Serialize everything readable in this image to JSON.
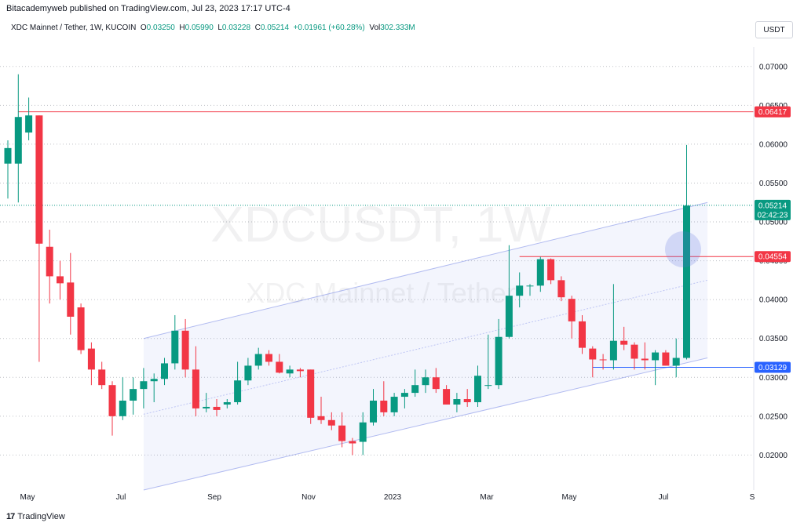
{
  "header": {
    "publisher": "Bitacademyweb published on TradingView.com, Jul 23, 2023 17:17 UTC-4"
  },
  "legend": {
    "symbol": "XDC Mainnet / Tether, 1W, KUCOIN",
    "open_label": "O",
    "open": "0.03250",
    "high_label": "H",
    "high": "0.05990",
    "low_label": "L",
    "low": "0.03228",
    "close_label": "C",
    "close": "0.05214",
    "change": "+0.01961 (+60.28%)",
    "vol_label": "Vol",
    "vol": "302.333M"
  },
  "currency_button": "USDT",
  "footer": {
    "brand": "TradingView",
    "logo": "17"
  },
  "colors": {
    "up": "#089981",
    "down": "#f23645",
    "channel": "#5b6ee1",
    "blue_line": "#2962ff",
    "red_line": "#f23645"
  },
  "chart_data": {
    "type": "candlestick",
    "watermark": {
      "symbol": "XDCUSDT, 1W",
      "name": "XDC Mainnet / Tether"
    },
    "y_ticks": [
      "0.07000",
      "0.06500",
      "0.06000",
      "0.05500",
      "0.05000",
      "0.04500",
      "0.04000",
      "0.03500",
      "0.03000",
      "0.02500",
      "0.02000"
    ],
    "x_ticks": [
      "May",
      "Jul",
      "Sep",
      "Nov",
      "2023",
      "Mar",
      "May",
      "Jul",
      "S"
    ],
    "ylim": [
      0.0155,
      0.0725
    ],
    "price_labels": [
      {
        "value": "0.06417",
        "price": 0.06417,
        "color": "#f23645"
      },
      {
        "value": "0.05214",
        "price": 0.05214,
        "color": "#089981",
        "countdown": "02:42:23"
      },
      {
        "value": "0.04554",
        "price": 0.04554,
        "color": "#f23645"
      },
      {
        "value": "0.03129",
        "price": 0.03129,
        "color": "#2962ff"
      }
    ],
    "horizontal_lines": [
      {
        "price": 0.06417,
        "color": "#f23645",
        "from_index": 1
      },
      {
        "price": 0.04554,
        "color": "#f23645",
        "from_index": 49
      },
      {
        "price": 0.03129,
        "color": "#2962ff",
        "from_index": 56
      }
    ],
    "channel": {
      "start_index": 13,
      "end_index": 67,
      "lower_start": 0.0155,
      "lower_end": 0.0325,
      "upper_start": 0.035,
      "upper_end": 0.0525
    },
    "candles": [
      {
        "o": 0.0575,
        "h": 0.0605,
        "l": 0.053,
        "c": 0.0595
      },
      {
        "o": 0.0575,
        "h": 0.069,
        "l": 0.0525,
        "c": 0.0635
      },
      {
        "o": 0.0615,
        "h": 0.066,
        "l": 0.0605,
        "c": 0.0637
      },
      {
        "o": 0.0637,
        "h": 0.0637,
        "l": 0.032,
        "c": 0.0472
      },
      {
        "o": 0.0468,
        "h": 0.049,
        "l": 0.0395,
        "c": 0.043
      },
      {
        "o": 0.043,
        "h": 0.045,
        "l": 0.04,
        "c": 0.0421
      },
      {
        "o": 0.0422,
        "h": 0.046,
        "l": 0.0355,
        "c": 0.0378
      },
      {
        "o": 0.039,
        "h": 0.0395,
        "l": 0.033,
        "c": 0.0335
      },
      {
        "o": 0.0337,
        "h": 0.0345,
        "l": 0.029,
        "c": 0.031
      },
      {
        "o": 0.031,
        "h": 0.032,
        "l": 0.0285,
        "c": 0.029
      },
      {
        "o": 0.029,
        "h": 0.0295,
        "l": 0.0225,
        "c": 0.025
      },
      {
        "o": 0.025,
        "h": 0.03,
        "l": 0.0245,
        "c": 0.027
      },
      {
        "o": 0.027,
        "h": 0.03,
        "l": 0.0252,
        "c": 0.0285
      },
      {
        "o": 0.0285,
        "h": 0.0312,
        "l": 0.026,
        "c": 0.0295
      },
      {
        "o": 0.0295,
        "h": 0.0305,
        "l": 0.0268,
        "c": 0.0298
      },
      {
        "o": 0.0298,
        "h": 0.0325,
        "l": 0.029,
        "c": 0.0318
      },
      {
        "o": 0.0318,
        "h": 0.038,
        "l": 0.031,
        "c": 0.036
      },
      {
        "o": 0.036,
        "h": 0.0375,
        "l": 0.03,
        "c": 0.031
      },
      {
        "o": 0.031,
        "h": 0.034,
        "l": 0.025,
        "c": 0.026
      },
      {
        "o": 0.026,
        "h": 0.028,
        "l": 0.0255,
        "c": 0.0262
      },
      {
        "o": 0.0262,
        "h": 0.0272,
        "l": 0.025,
        "c": 0.0258
      },
      {
        "o": 0.0265,
        "h": 0.0272,
        "l": 0.026,
        "c": 0.0268
      },
      {
        "o": 0.0268,
        "h": 0.032,
        "l": 0.0265,
        "c": 0.0296
      },
      {
        "o": 0.0296,
        "h": 0.0325,
        "l": 0.029,
        "c": 0.0315
      },
      {
        "o": 0.0315,
        "h": 0.0338,
        "l": 0.031,
        "c": 0.033
      },
      {
        "o": 0.033,
        "h": 0.0335,
        "l": 0.0315,
        "c": 0.032
      },
      {
        "o": 0.032,
        "h": 0.033,
        "l": 0.0305,
        "c": 0.0306
      },
      {
        "o": 0.0305,
        "h": 0.0315,
        "l": 0.03,
        "c": 0.031
      },
      {
        "o": 0.031,
        "h": 0.0312,
        "l": 0.03,
        "c": 0.0308
      },
      {
        "o": 0.031,
        "h": 0.031,
        "l": 0.024,
        "c": 0.0248
      },
      {
        "o": 0.025,
        "h": 0.0275,
        "l": 0.024,
        "c": 0.0245
      },
      {
        "o": 0.0245,
        "h": 0.0255,
        "l": 0.0232,
        "c": 0.0238
      },
      {
        "o": 0.0238,
        "h": 0.0255,
        "l": 0.021,
        "c": 0.0218
      },
      {
        "o": 0.0218,
        "h": 0.0222,
        "l": 0.02,
        "c": 0.0215
      },
      {
        "o": 0.0217,
        "h": 0.0255,
        "l": 0.02,
        "c": 0.0242
      },
      {
        "o": 0.0242,
        "h": 0.0285,
        "l": 0.0238,
        "c": 0.027
      },
      {
        "o": 0.027,
        "h": 0.0295,
        "l": 0.025,
        "c": 0.0255
      },
      {
        "o": 0.0255,
        "h": 0.028,
        "l": 0.025,
        "c": 0.0275
      },
      {
        "o": 0.0275,
        "h": 0.0285,
        "l": 0.026,
        "c": 0.028
      },
      {
        "o": 0.028,
        "h": 0.031,
        "l": 0.0275,
        "c": 0.029
      },
      {
        "o": 0.029,
        "h": 0.031,
        "l": 0.028,
        "c": 0.03
      },
      {
        "o": 0.03,
        "h": 0.0312,
        "l": 0.028,
        "c": 0.0285
      },
      {
        "o": 0.0285,
        "h": 0.029,
        "l": 0.0265,
        "c": 0.0265
      },
      {
        "o": 0.0265,
        "h": 0.028,
        "l": 0.0255,
        "c": 0.0272
      },
      {
        "o": 0.0272,
        "h": 0.0285,
        "l": 0.0262,
        "c": 0.0268
      },
      {
        "o": 0.0268,
        "h": 0.0315,
        "l": 0.0262,
        "c": 0.0302
      },
      {
        "o": 0.029,
        "h": 0.0355,
        "l": 0.0285,
        "c": 0.029
      },
      {
        "o": 0.029,
        "h": 0.0375,
        "l": 0.0285,
        "c": 0.0352
      },
      {
        "o": 0.0352,
        "h": 0.047,
        "l": 0.035,
        "c": 0.0405
      },
      {
        "o": 0.0405,
        "h": 0.0435,
        "l": 0.039,
        "c": 0.0418
      },
      {
        "o": 0.0418,
        "h": 0.042,
        "l": 0.0405,
        "c": 0.0418
      },
      {
        "o": 0.0418,
        "h": 0.0455,
        "l": 0.041,
        "c": 0.0452
      },
      {
        "o": 0.0452,
        "h": 0.0453,
        "l": 0.042,
        "c": 0.0425
      },
      {
        "o": 0.0425,
        "h": 0.043,
        "l": 0.0398,
        "c": 0.0403
      },
      {
        "o": 0.0401,
        "h": 0.0405,
        "l": 0.035,
        "c": 0.0372
      },
      {
        "o": 0.0372,
        "h": 0.038,
        "l": 0.033,
        "c": 0.0338
      },
      {
        "o": 0.0337,
        "h": 0.034,
        "l": 0.03,
        "c": 0.0323
      },
      {
        "o": 0.0323,
        "h": 0.033,
        "l": 0.031,
        "c": 0.0322
      },
      {
        "o": 0.0322,
        "h": 0.042,
        "l": 0.031,
        "c": 0.0347
      },
      {
        "o": 0.0347,
        "h": 0.0365,
        "l": 0.0335,
        "c": 0.0342
      },
      {
        "o": 0.0342,
        "h": 0.0345,
        "l": 0.031,
        "c": 0.0324
      },
      {
        "o": 0.0324,
        "h": 0.0345,
        "l": 0.031,
        "c": 0.0322
      },
      {
        "o": 0.0322,
        "h": 0.0335,
        "l": 0.029,
        "c": 0.0332
      },
      {
        "o": 0.0332,
        "h": 0.0335,
        "l": 0.0315,
        "c": 0.0315
      },
      {
        "o": 0.0315,
        "h": 0.035,
        "l": 0.03,
        "c": 0.0325
      },
      {
        "o": 0.0325,
        "h": 0.0599,
        "l": 0.0323,
        "c": 0.0521
      }
    ]
  }
}
